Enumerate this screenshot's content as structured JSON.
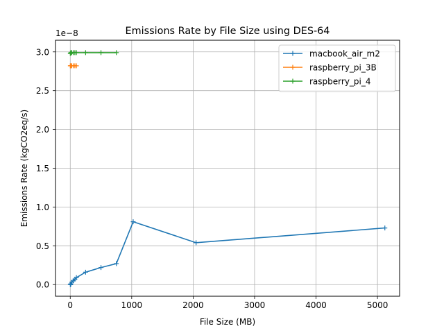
{
  "chart_data": {
    "type": "line",
    "title": "Emissions Rate by File Size using DES-64",
    "xlabel": "File Size (MB)",
    "ylabel": "Emissions Rate (kgCO2eq/s)",
    "y_scale_note": "1e−8",
    "xlim": [
      -240,
      5360
    ],
    "ylim": [
      -0.15,
      3.15
    ],
    "grid": true,
    "legend_position": "upper right",
    "x_ticks": [
      0,
      1000,
      2000,
      3000,
      4000,
      5000
    ],
    "y_ticks": [
      0.0,
      0.5,
      1.0,
      1.5,
      2.0,
      2.5,
      3.0
    ],
    "x_tick_labels": [
      "0",
      "1000",
      "2000",
      "3000",
      "4000",
      "5000"
    ],
    "y_tick_labels": [
      "0.0",
      "0.5",
      "1.0",
      "1.5",
      "2.0",
      "2.5",
      "3.0"
    ],
    "series": [
      {
        "name": "macbook_air_m2",
        "color": "#1f77b4",
        "x": [
          1,
          5,
          10,
          25,
          50,
          75,
          100,
          250,
          500,
          750,
          1024,
          2048,
          5120
        ],
        "y": [
          0.0,
          0.0,
          0.01,
          0.03,
          0.05,
          0.07,
          0.09,
          0.16,
          0.22,
          0.27,
          0.81,
          0.54,
          0.73
        ]
      },
      {
        "name": "raspberry_pi_3B",
        "color": "#ff7f0e",
        "x": [
          1,
          5,
          10,
          25,
          50,
          75,
          100
        ],
        "y": [
          2.82,
          2.82,
          2.82,
          2.82,
          2.82,
          2.82,
          2.82
        ]
      },
      {
        "name": "raspberry_pi_4",
        "color": "#2ca02c",
        "x": [
          1,
          5,
          10,
          25,
          50,
          75,
          100,
          250,
          500,
          750
        ],
        "y": [
          2.98,
          2.98,
          2.99,
          2.99,
          2.99,
          2.99,
          2.99,
          2.99,
          2.99,
          2.99
        ]
      }
    ]
  }
}
